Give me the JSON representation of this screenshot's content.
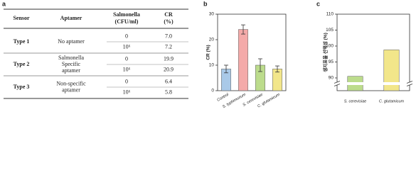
{
  "panels": [
    "a",
    "b",
    "c"
  ],
  "table": {
    "header": [
      "Sensor",
      "Aptamer",
      "Salmonella",
      "(CFU/ml)",
      "CR",
      "(%)"
    ],
    "rows": [
      {
        "sensor": "Type 1",
        "aptamer": [
          "No aptamer"
        ],
        "entries": [
          [
            "0",
            "7.0"
          ],
          [
            "10⁶",
            "7.2"
          ]
        ]
      },
      {
        "sensor": "Type 2",
        "aptamer": [
          "Salmonella",
          "Specific",
          "aptamer"
        ],
        "entries": [
          [
            "0",
            "19.9"
          ],
          [
            "10⁶",
            "20.9"
          ]
        ]
      },
      {
        "sensor": "Type 3",
        "aptamer": [
          "Non-specific",
          "aptamer"
        ],
        "entries": [
          [
            "0",
            "6.4"
          ],
          [
            "10⁶",
            "5.8"
          ]
        ]
      }
    ]
  },
  "chart_data": [
    {
      "type": "bar",
      "y_label": "CR (%)",
      "categories": [
        "Control",
        "S. typhimurium",
        "S. cerevisiae",
        "C. glutamicum"
      ],
      "values": [
        8.5,
        24,
        10,
        8.5
      ],
      "errors": [
        1.5,
        1.8,
        2.5,
        1.2
      ],
      "colors": [
        "#a9c9e8",
        "#f4aaa9",
        "#bcdc8c",
        "#f2e68a"
      ],
      "ylim": [
        0,
        30
      ],
      "yticks": [
        0,
        10,
        20,
        30
      ]
    },
    {
      "type": "bar",
      "y_label": "생지표율 선택성 (%)",
      "categories": [
        "S. cerevisiae",
        "C. glutamicum"
      ],
      "values": [
        90.5,
        98.8
      ],
      "colors": [
        "#bcdc8c",
        "#f2e68a"
      ],
      "ylim": [
        86,
        110
      ],
      "yticks": [
        90,
        95,
        100,
        105,
        110
      ],
      "axis_break": true
    }
  ]
}
